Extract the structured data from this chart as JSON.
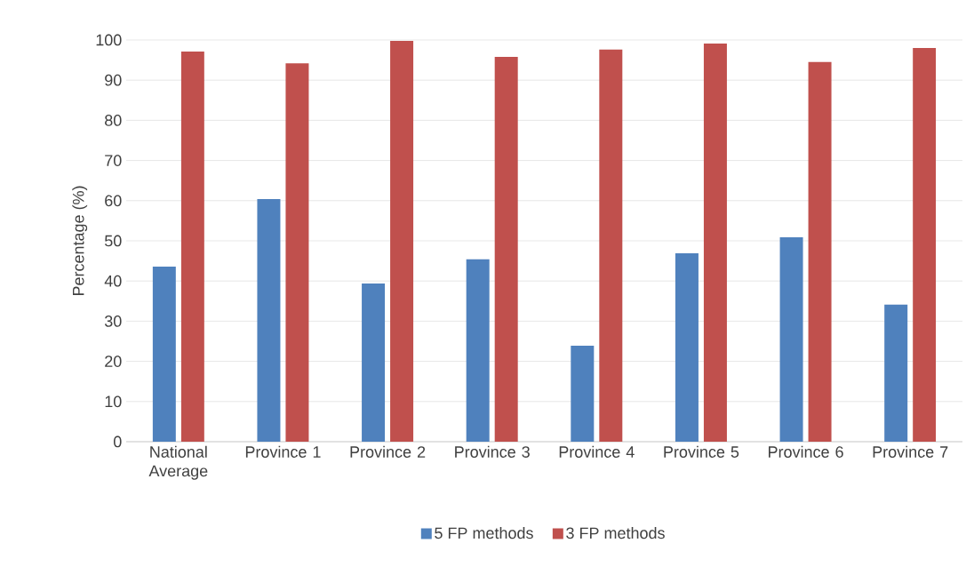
{
  "chart_data": {
    "type": "bar",
    "ylabel": "Percentage (%)",
    "categories": [
      "National Average",
      "Province 1",
      "Province 2",
      "Province 3",
      "Province 4",
      "Province 5",
      "Province 6",
      "Province 7"
    ],
    "series": [
      {
        "name": "5 FP methods",
        "color": "#4f81bd",
        "values": [
          43.6,
          60.4,
          39.4,
          45.4,
          23.9,
          46.9,
          50.9,
          34.1
        ]
      },
      {
        "name": "3 FP methods",
        "color": "#c0504d",
        "values": [
          97.1,
          94.2,
          99.8,
          95.8,
          97.6,
          99.1,
          94.5,
          98.0
        ]
      }
    ],
    "ylim": [
      0,
      100
    ],
    "yticks": [
      0,
      10,
      20,
      30,
      40,
      50,
      60,
      70,
      80,
      90,
      100
    ],
    "grid": "y",
    "legend": "bottom"
  }
}
